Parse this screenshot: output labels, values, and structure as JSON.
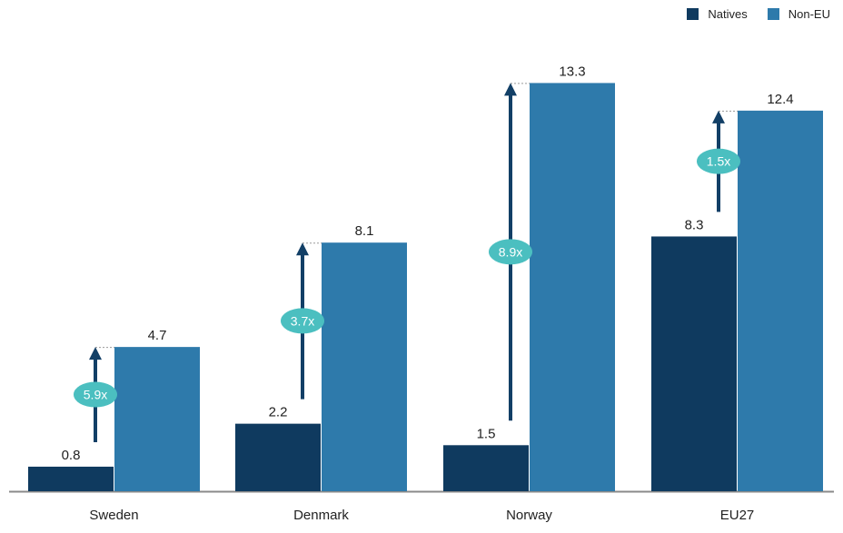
{
  "colors": {
    "natives": "#0f3a5f",
    "non_eu": "#2e7aab",
    "arrow": "#123f66",
    "ratio_badge": "#4bbfc0",
    "baseline": "#8a8a8a",
    "guide": "#9a9a9a"
  },
  "legend": {
    "natives_label": "Natives",
    "non_eu_label": "Non-EU"
  },
  "chart_data": {
    "type": "bar",
    "categories": [
      "Sweden",
      "Denmark",
      "Norway",
      "EU27"
    ],
    "series": [
      {
        "name": "Natives",
        "values": [
          0.8,
          2.2,
          1.5,
          8.3
        ]
      },
      {
        "name": "Non-EU",
        "values": [
          4.7,
          8.1,
          13.3,
          12.4
        ]
      }
    ],
    "value_labels": {
      "Natives": [
        "0.8",
        "2.2",
        "1.5",
        "8.3"
      ],
      "Non-EU": [
        "4.7",
        "8.1",
        "13.3",
        "12.4"
      ]
    },
    "ratios": [
      "5.9x",
      "3.7x",
      "8.9x",
      "1.5x"
    ],
    "ylim": [
      0,
      14.2
    ],
    "grid": false,
    "legend_position": "top-right"
  }
}
